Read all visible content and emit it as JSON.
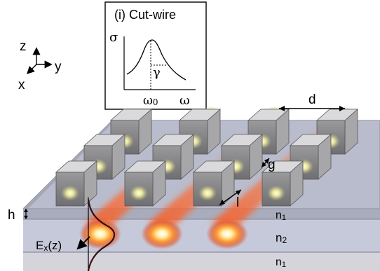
{
  "inset": {
    "title": "(i) Cut-wire",
    "y_axis_label": "σ",
    "x_axis_label": "ω",
    "resonance_label": "ω",
    "resonance_subscript": "0",
    "width_label": "γ"
  },
  "axes": {
    "z": "z",
    "y": "y",
    "x": "x"
  },
  "dims": {
    "period": "d",
    "gap": "g",
    "length": "l",
    "thickness": "h"
  },
  "field": {
    "label_main": "E",
    "label_sub": "x",
    "label_arg": "(z)"
  },
  "layers": [
    {
      "label_main": "n",
      "label_sub": "1"
    },
    {
      "label_main": "n",
      "label_sub": "2"
    },
    {
      "label_main": "n",
      "label_sub": "1"
    }
  ],
  "colors": {
    "layer_top": "#b4b7c4",
    "layer_core": "#c9cbdb",
    "layer_bottom": "#cfcfd6",
    "wire_front": "#8a8a8d",
    "wire_top": "#d8d8da",
    "glow": "#ff7a1a",
    "field_curve": "#3a0d0d"
  }
}
